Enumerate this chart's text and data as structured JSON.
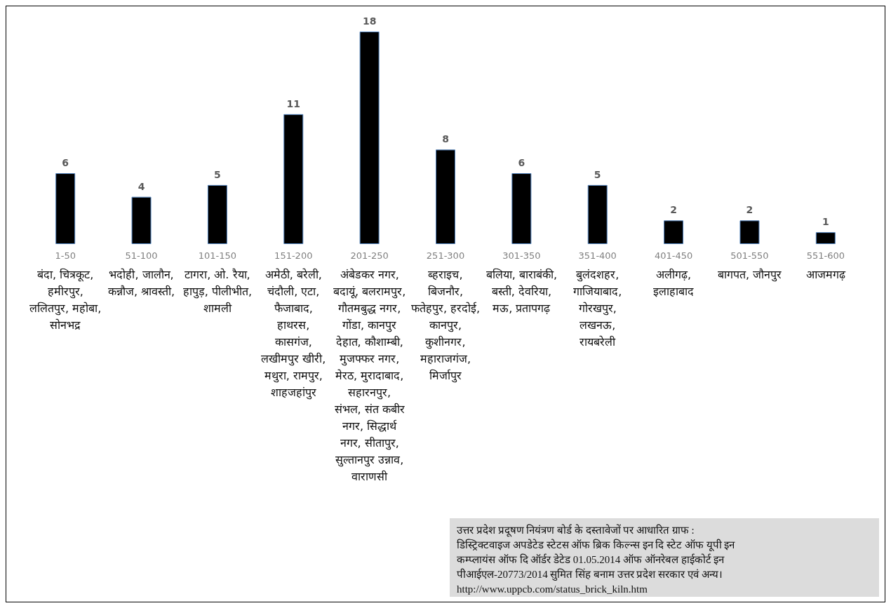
{
  "chart_data": {
    "type": "bar",
    "categories": [
      "1-50",
      "51-100",
      "101-150",
      "151-200",
      "201-250",
      "251-300",
      "301-350",
      "351-400",
      "401-450",
      "501-550",
      "551-600"
    ],
    "values": [
      6,
      4,
      5,
      11,
      18,
      8,
      6,
      5,
      2,
      2,
      1
    ],
    "color": "#000000",
    "data_labels": true,
    "annotations": [
      "बंदा, चित्रकूट, हमीरपुर, ललितपुर, महोबा, सोनभद्र",
      "भदोही, जालौन, कन्नौज, श्रावस्ती,",
      "टागरा, ओ. रैया, हापुड़, पीलीभीत, शामली",
      "अमेठी, बरेली, चंदौली, एटा, फैजाबाद, हाथरस, कासगंज, लखीमपुर खीरी, मथुरा, रामपुर, शाहजहांपुर",
      "अंबेडकर नगर, बदायूं, बलरामपुर, गौतमबुद्ध नगर, गोंडा, कानपुर देहात, कौशाम्बी, मुजफ्फर नगर, मेरठ, मुरादाबाद, सहारनपुर, संभल, संत कबीर नगर, सिद्धार्थ नगर, सीतापुर, सुल्तानपुर उन्नाव, वाराणसी",
      "ब्हराइच, बिजनौर, फतेहपुर, हरदोई, कानपुर, कुशीनगर, महाराजगंज, मिर्जापुर",
      "बलिया, बाराबंकी, बस्ती, देवरिया, मऊ, प्रतापगढ़",
      "बुलंदशहर, गाजियाबाद, गोरखपुर, लखनऊ, रायबरेली",
      "अलीगढ़, इलाहाबाद",
      "बागपत, जौनपुर",
      "आजमगढ़",
      "उत्तर प्रदेश प्रदूषण नियंत्रण बोर्ड के दस्तावेजों पर आधारित ग्राफ :\nडिस्ट्रिक्टवाइज अपडेटेड स्टेटस ऑफ ब्रिक किल्न्स इन दि स्टेट ऑफ यूपी इन\nकम्प्लायंस ऑफ दि ऑर्डर डेटेड 01.05.2014 ऑफ ऑनरेबल हाईकोर्ट इन\nपीआईएल-20773/2014 सुमित सिंह बनाम उत्तर प्रदेश सरकार एवं अन्य।\nhttp://www.uppcb.com/status_brick_kiln.htm"
    ]
  }
}
